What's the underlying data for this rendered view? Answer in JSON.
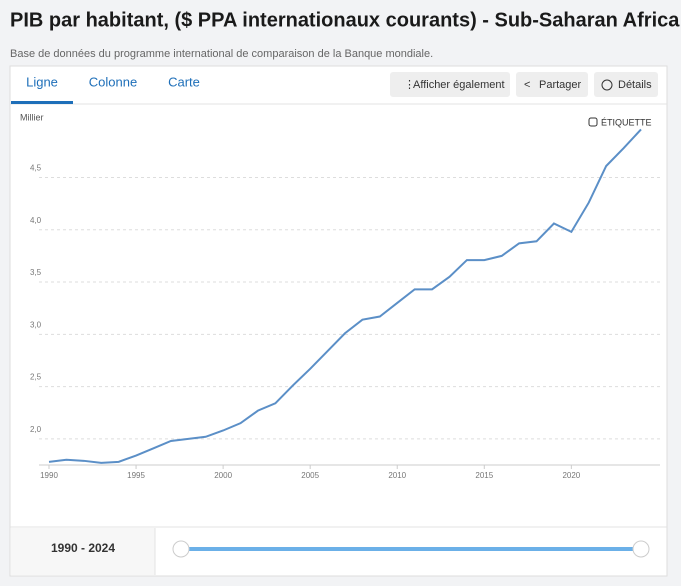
{
  "ui": {
    "title": "PIB par habitant, ($ PPA internationaux courants) - Sub-Saharan Africa",
    "subtitle": "Base de données du programme international de comparaison de la Banque mondiale.",
    "tabs": [
      "Ligne",
      "Colonne",
      "Carte"
    ],
    "buttons": [
      "Afficher également",
      "Partager",
      "Détails"
    ],
    "label_toggle": "ÉTIQUETTE",
    "range": "1990 - 2024"
  },
  "chart_data": {
    "type": "line",
    "y_axis_label": "Millier",
    "x": [
      1990,
      1991,
      1992,
      1993,
      1994,
      1995,
      1996,
      1997,
      1998,
      1999,
      2000,
      2001,
      2002,
      2003,
      2004,
      2005,
      2006,
      2007,
      2008,
      2009,
      2010,
      2011,
      2012,
      2013,
      2014,
      2015,
      2016,
      2017,
      2018,
      2019,
      2020,
      2021,
      2022,
      2023,
      2024
    ],
    "values": [
      1.78,
      1.8,
      1.79,
      1.77,
      1.78,
      1.84,
      1.91,
      1.98,
      2.0,
      2.02,
      2.08,
      2.15,
      2.27,
      2.34,
      2.51,
      2.67,
      2.84,
      3.01,
      3.14,
      3.17,
      3.3,
      3.43,
      3.43,
      3.55,
      3.71,
      3.71,
      3.75,
      3.87,
      3.89,
      4.06,
      3.98,
      4.26,
      4.61,
      4.78,
      4.96
    ],
    "color": "#5b8fc7",
    "xlim": [
      1990,
      2024
    ],
    "xticks": [
      1990,
      1995,
      2000,
      2005,
      2010,
      2015,
      2020
    ],
    "ylim": [
      1.75,
      5.05
    ],
    "yticks": [
      {
        "value": 2.0,
        "label": "2,0"
      },
      {
        "value": 2.5,
        "label": "2,5"
      },
      {
        "value": 3.0,
        "label": "3,0"
      },
      {
        "value": 3.5,
        "label": "3,5"
      },
      {
        "value": 4.0,
        "label": "4,0"
      },
      {
        "value": 4.5,
        "label": "4,5"
      }
    ],
    "grid": true
  }
}
